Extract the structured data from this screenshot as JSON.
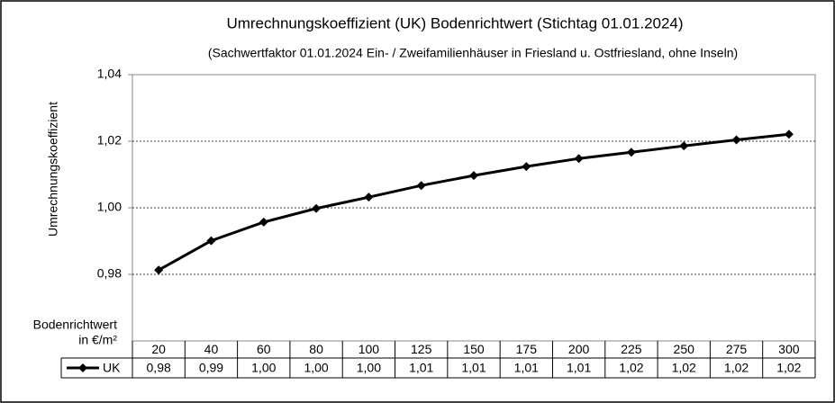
{
  "chart_data": {
    "type": "line",
    "title": "Umrechnungskoeffizient (UK)  Bodenrichtwert (Stichtag 01.01.2024)",
    "subtitle": "(Sachwertfaktor 01.01.2024 Ein- / Zweifamilienhäuser  in Friesland u. Ostfriesland, ohne Inseln)",
    "y_label": "Umrechnungskoeffizient",
    "x_label": [
      "Bodenrichtwert",
      "in €/m²"
    ],
    "categories": [
      "20",
      "40",
      "60",
      "80",
      "100",
      "125",
      "150",
      "175",
      "200",
      "225",
      "250",
      "275",
      "300"
    ],
    "series": [
      {
        "name": "UK",
        "color": "#000000",
        "marker": "diamond",
        "values": [
          0.9813,
          0.9901,
          0.9957,
          0.9998,
          1.0032,
          1.0067,
          1.0097,
          1.0124,
          1.0148,
          1.0167,
          1.0186,
          1.0204,
          1.0221
        ],
        "value_labels": [
          "0,98",
          "0,99",
          "1,00",
          "1,00",
          "1,00",
          "1,01",
          "1,01",
          "1,01",
          "1,01",
          "1,02",
          "1,02",
          "1,02",
          "1,02"
        ]
      }
    ],
    "ylim": [
      0.96,
      1.04
    ],
    "yticks": [
      {
        "value": 0.98,
        "label": "0,98"
      },
      {
        "value": 1.0,
        "label": "1,00"
      },
      {
        "value": 1.02,
        "label": "1,02"
      },
      {
        "value": 1.04,
        "label": "1,04"
      }
    ],
    "grid": true
  }
}
